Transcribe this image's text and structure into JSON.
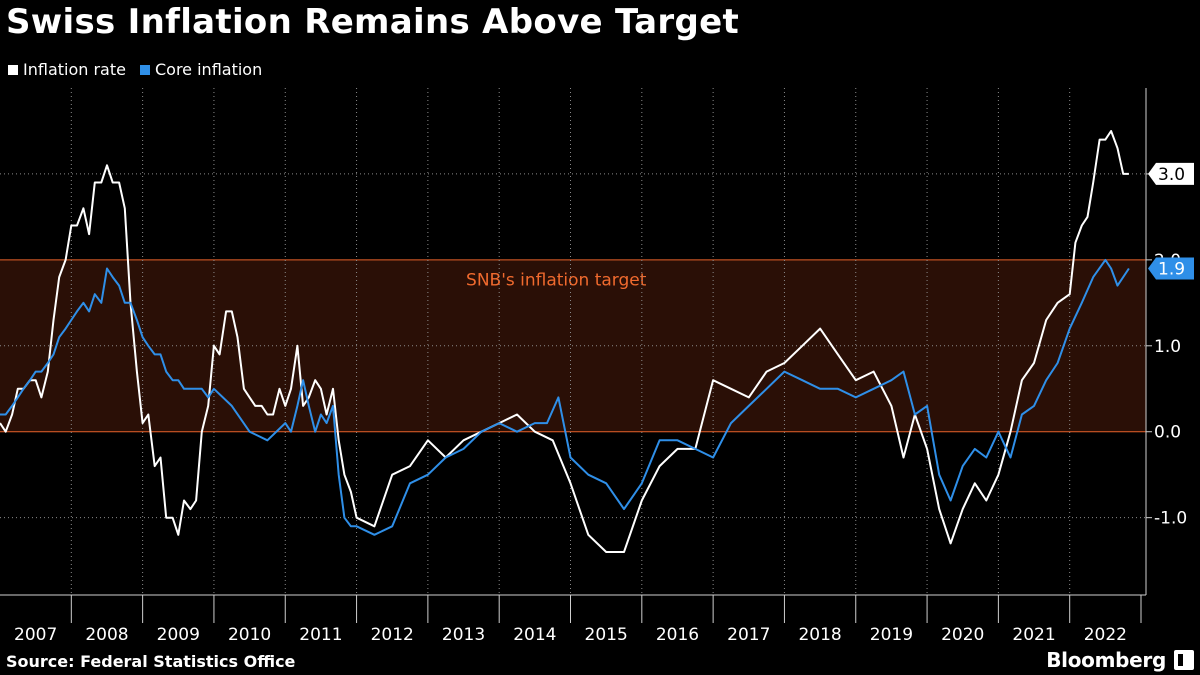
{
  "chart_data": {
    "type": "line",
    "title": "Swiss Inflation Remains Above Target",
    "ylim": [
      -1.9,
      4.0
    ],
    "xlim": [
      2007.0,
      2023.07
    ],
    "yticks": [
      -1.0,
      0.0,
      1.0,
      2.0,
      3.0
    ],
    "ytick_labels": [
      "-1.0",
      "0.0",
      "1.0",
      "2.0",
      "3.0"
    ],
    "xticks": [
      "2007",
      "2008",
      "2009",
      "2010",
      "2011",
      "2012",
      "2013",
      "2014",
      "2015",
      "2016",
      "2017",
      "2018",
      "2019",
      "2020",
      "2021",
      "2022"
    ],
    "target_band": {
      "low": 0.0,
      "high": 2.0,
      "label": "SNB's inflation target"
    },
    "series": [
      {
        "name": "Inflation rate",
        "color": "#ffffff",
        "end_label": "3.0",
        "x": [
          2007.0,
          2007.08,
          2007.17,
          2007.25,
          2007.33,
          2007.42,
          2007.5,
          2007.58,
          2007.67,
          2007.75,
          2007.83,
          2007.92,
          2008.0,
          2008.08,
          2008.17,
          2008.25,
          2008.33,
          2008.42,
          2008.5,
          2008.58,
          2008.67,
          2008.75,
          2008.83,
          2008.92,
          2009.0,
          2009.08,
          2009.17,
          2009.25,
          2009.33,
          2009.42,
          2009.5,
          2009.58,
          2009.67,
          2009.75,
          2009.83,
          2009.92,
          2010.0,
          2010.08,
          2010.17,
          2010.25,
          2010.33,
          2010.42,
          2010.5,
          2010.58,
          2010.67,
          2010.75,
          2010.83,
          2010.92,
          2011.0,
          2011.08,
          2011.17,
          2011.25,
          2011.33,
          2011.42,
          2011.5,
          2011.58,
          2011.67,
          2011.75,
          2011.83,
          2011.92,
          2012.0,
          2012.25,
          2012.5,
          2012.75,
          2013.0,
          2013.25,
          2013.5,
          2013.75,
          2014.0,
          2014.25,
          2014.5,
          2014.75,
          2015.0,
          2015.25,
          2015.5,
          2015.75,
          2016.0,
          2016.25,
          2016.5,
          2016.75,
          2017.0,
          2017.25,
          2017.5,
          2017.75,
          2018.0,
          2018.25,
          2018.5,
          2018.75,
          2019.0,
          2019.25,
          2019.5,
          2019.67,
          2019.83,
          2020.0,
          2020.17,
          2020.33,
          2020.5,
          2020.67,
          2020.83,
          2021.0,
          2021.17,
          2021.33,
          2021.5,
          2021.67,
          2021.83,
          2022.0,
          2022.08,
          2022.17,
          2022.25,
          2022.33,
          2022.42,
          2022.5,
          2022.58,
          2022.67,
          2022.75,
          2022.83
        ],
        "y": [
          0.1,
          0.0,
          0.2,
          0.5,
          0.5,
          0.6,
          0.6,
          0.4,
          0.7,
          1.3,
          1.8,
          2.0,
          2.4,
          2.4,
          2.6,
          2.3,
          2.9,
          2.9,
          3.1,
          2.9,
          2.9,
          2.6,
          1.5,
          0.7,
          0.1,
          0.2,
          -0.4,
          -0.3,
          -1.0,
          -1.0,
          -1.2,
          -0.8,
          -0.9,
          -0.8,
          0.0,
          0.3,
          1.0,
          0.9,
          1.4,
          1.4,
          1.1,
          0.5,
          0.4,
          0.3,
          0.3,
          0.2,
          0.2,
          0.5,
          0.3,
          0.5,
          1.0,
          0.3,
          0.4,
          0.6,
          0.5,
          0.2,
          0.5,
          -0.1,
          -0.5,
          -0.7,
          -1.0,
          -1.1,
          -0.5,
          -0.4,
          -0.1,
          -0.3,
          -0.1,
          0.0,
          0.1,
          0.2,
          0.0,
          -0.1,
          -0.6,
          -1.2,
          -1.4,
          -1.4,
          -0.8,
          -0.4,
          -0.2,
          -0.2,
          0.6,
          0.5,
          0.4,
          0.7,
          0.8,
          1.0,
          1.2,
          0.9,
          0.6,
          0.7,
          0.3,
          -0.3,
          0.2,
          -0.2,
          -0.9,
          -1.3,
          -0.9,
          -0.6,
          -0.8,
          -0.5,
          0.0,
          0.6,
          0.8,
          1.3,
          1.5,
          1.6,
          2.2,
          2.4,
          2.5,
          2.9,
          3.4,
          3.4,
          3.5,
          3.3,
          3.0,
          3.0
        ]
      },
      {
        "name": "Core inflation",
        "color": "#2f8fe8",
        "end_label": "1.9",
        "x": [
          2007.0,
          2007.08,
          2007.17,
          2007.25,
          2007.33,
          2007.42,
          2007.5,
          2007.58,
          2007.67,
          2007.75,
          2007.83,
          2007.92,
          2008.0,
          2008.08,
          2008.17,
          2008.25,
          2008.33,
          2008.42,
          2008.5,
          2008.58,
          2008.67,
          2008.75,
          2008.83,
          2008.92,
          2009.0,
          2009.08,
          2009.17,
          2009.25,
          2009.33,
          2009.42,
          2009.5,
          2009.58,
          2009.67,
          2009.75,
          2009.83,
          2009.92,
          2010.0,
          2010.25,
          2010.5,
          2010.75,
          2011.0,
          2011.08,
          2011.17,
          2011.25,
          2011.33,
          2011.42,
          2011.5,
          2011.58,
          2011.67,
          2011.75,
          2011.83,
          2011.92,
          2012.0,
          2012.25,
          2012.5,
          2012.75,
          2013.0,
          2013.25,
          2013.5,
          2013.75,
          2014.0,
          2014.25,
          2014.5,
          2014.67,
          2014.83,
          2015.0,
          2015.25,
          2015.5,
          2015.75,
          2016.0,
          2016.25,
          2016.5,
          2016.75,
          2017.0,
          2017.25,
          2017.5,
          2017.75,
          2018.0,
          2018.25,
          2018.5,
          2018.75,
          2019.0,
          2019.25,
          2019.5,
          2019.67,
          2019.83,
          2020.0,
          2020.17,
          2020.33,
          2020.5,
          2020.67,
          2020.83,
          2021.0,
          2021.17,
          2021.33,
          2021.5,
          2021.67,
          2021.83,
          2022.0,
          2022.17,
          2022.33,
          2022.5,
          2022.58,
          2022.67,
          2022.75,
          2022.83
        ],
        "y": [
          0.2,
          0.2,
          0.3,
          0.4,
          0.5,
          0.6,
          0.7,
          0.7,
          0.8,
          0.9,
          1.1,
          1.2,
          1.3,
          1.4,
          1.5,
          1.4,
          1.6,
          1.5,
          1.9,
          1.8,
          1.7,
          1.5,
          1.5,
          1.3,
          1.1,
          1.0,
          0.9,
          0.9,
          0.7,
          0.6,
          0.6,
          0.5,
          0.5,
          0.5,
          0.5,
          0.4,
          0.5,
          0.3,
          0.0,
          -0.1,
          0.1,
          0.0,
          0.3,
          0.6,
          0.3,
          0.0,
          0.2,
          0.1,
          0.3,
          -0.5,
          -1.0,
          -1.1,
          -1.1,
          -1.2,
          -1.1,
          -0.6,
          -0.5,
          -0.3,
          -0.2,
          0.0,
          0.1,
          0.0,
          0.1,
          0.1,
          0.4,
          -0.3,
          -0.5,
          -0.6,
          -0.9,
          -0.6,
          -0.1,
          -0.1,
          -0.2,
          -0.3,
          0.1,
          0.3,
          0.5,
          0.7,
          0.6,
          0.5,
          0.5,
          0.4,
          0.5,
          0.6,
          0.7,
          0.2,
          0.3,
          -0.5,
          -0.8,
          -0.4,
          -0.2,
          -0.3,
          0.0,
          -0.3,
          0.2,
          0.3,
          0.6,
          0.8,
          1.2,
          1.5,
          1.8,
          2.0,
          1.9,
          1.7,
          1.8,
          1.9
        ]
      }
    ]
  },
  "legend": [
    {
      "label": "Inflation rate",
      "color": "#ffffff"
    },
    {
      "label": "Core inflation",
      "color": "#2f8fe8"
    }
  ],
  "footer": {
    "source": "Source: Federal Statistics Office",
    "brand": "Bloomberg"
  }
}
